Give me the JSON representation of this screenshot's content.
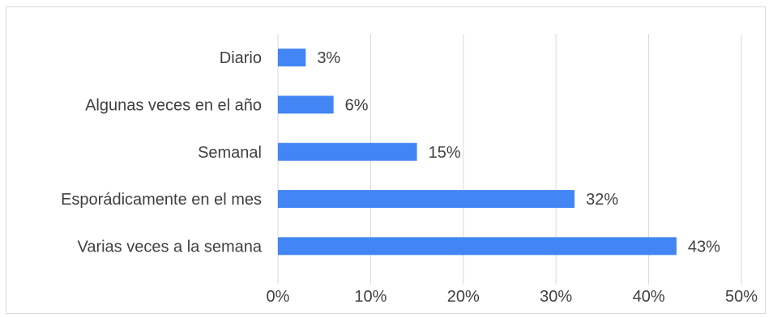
{
  "chart_data": {
    "type": "bar",
    "orientation": "horizontal",
    "categories": [
      "Diario",
      "Algunas veces en el año",
      "Semanal",
      "Esporádicamente en el mes",
      "Varias veces a la semana"
    ],
    "values": [
      3,
      6,
      15,
      32,
      43
    ],
    "data_labels": [
      "3%",
      "6%",
      "15%",
      "32%",
      "43%"
    ],
    "x_ticks": [
      0,
      10,
      20,
      30,
      40,
      50
    ],
    "x_tick_labels": [
      "0%",
      "10%",
      "20%",
      "30%",
      "40%",
      "50%"
    ],
    "xlim": [
      0,
      50
    ],
    "grid": "vertical",
    "legend": "none",
    "bar_color": "#4285f4",
    "grid_color": "#d9d9d9"
  }
}
